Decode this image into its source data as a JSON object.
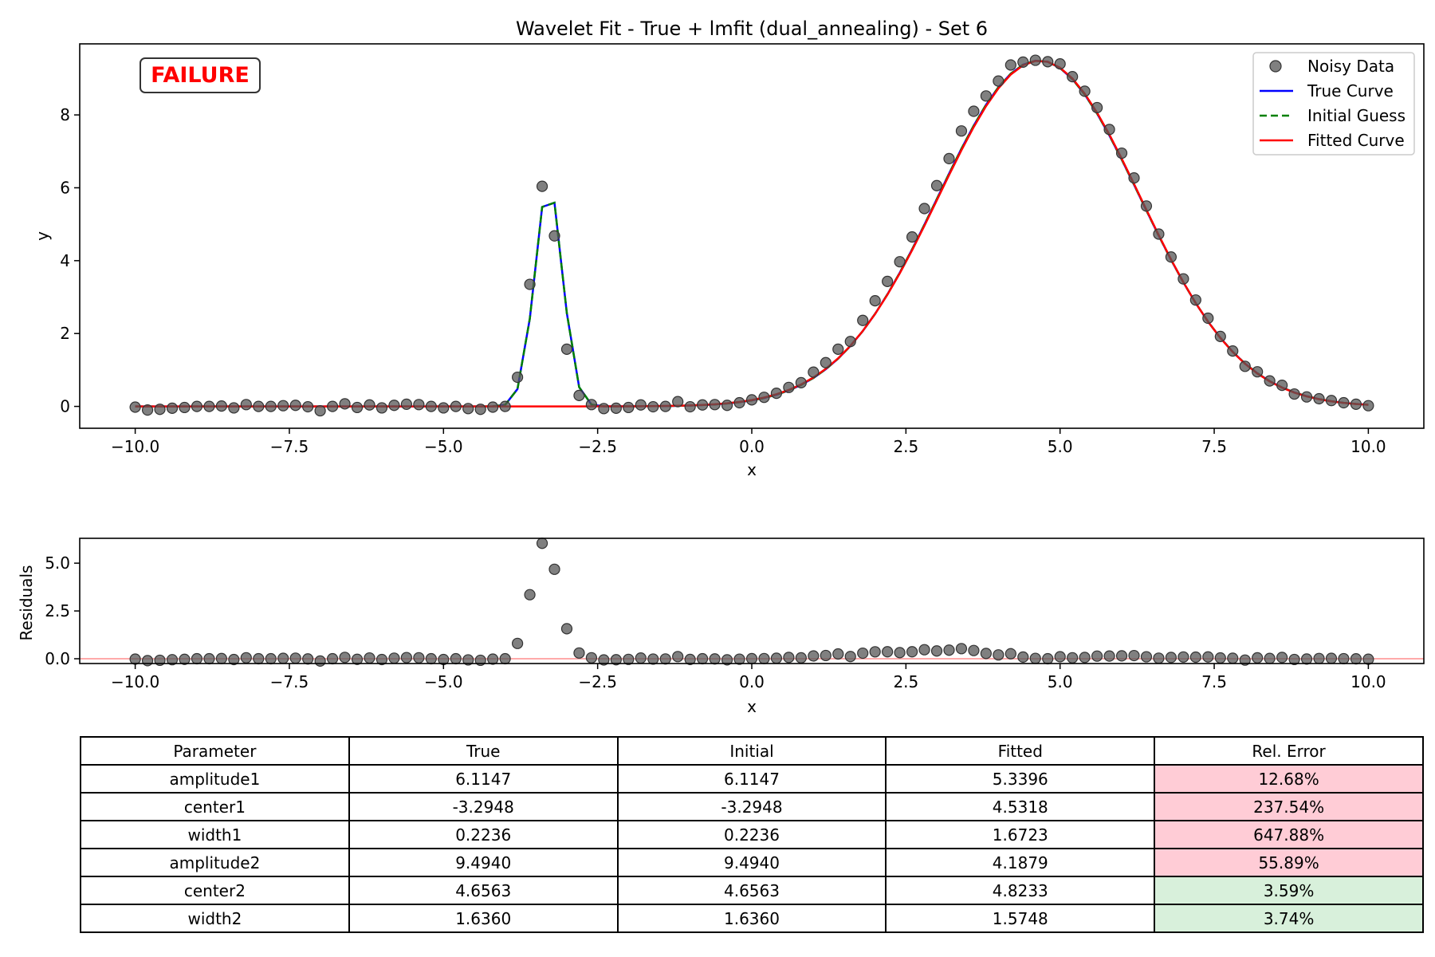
{
  "chart_data": [
    {
      "type": "line",
      "title": "Wavelet Fit - True + lmfit (dual_annealing) - Set 6",
      "xlabel": "x",
      "ylabel": "y",
      "xlim": [
        -10.9,
        10.9
      ],
      "ylim": [
        -0.6,
        9.95
      ],
      "x_ticks": [
        -10.0,
        -7.5,
        -5.0,
        -2.5,
        0.0,
        2.5,
        5.0,
        7.5,
        10.0
      ],
      "x_tick_labels": [
        "−10.0",
        "−7.5",
        "−5.0",
        "−2.5",
        "0.0",
        "2.5",
        "5.0",
        "7.5",
        "10.0"
      ],
      "y_ticks": [
        0,
        2,
        4,
        6,
        8
      ],
      "y_tick_labels": [
        "0",
        "2",
        "4",
        "6",
        "8"
      ],
      "grid": false,
      "legend_position": "top-right",
      "status_badge": "FAILURE",
      "series": [
        {
          "name": "Noisy Data",
          "kind": "scatter",
          "color": "#555555"
        },
        {
          "name": "True Curve",
          "kind": "line",
          "color": "#0000ff",
          "params": {
            "amplitude1": 6.1147,
            "center1": -3.2948,
            "width1": 0.2236,
            "amplitude2": 9.494,
            "center2": 4.6563,
            "width2": 1.636
          }
        },
        {
          "name": "Initial Guess",
          "kind": "dashed-line",
          "color": "#008000",
          "params": {
            "amplitude1": 6.1147,
            "center1": -3.2948,
            "width1": 0.2236,
            "amplitude2": 9.494,
            "center2": 4.6563,
            "width2": 1.636
          }
        },
        {
          "name": "Fitted Curve",
          "kind": "line",
          "color": "#ff0000",
          "params": {
            "amplitude1": 5.3396,
            "center1": 4.5318,
            "width1": 1.6723,
            "amplitude2": 4.1879,
            "center2": 4.8233,
            "width2": 1.5748
          }
        }
      ],
      "data_points": {
        "x_start": -10.0,
        "x_end": 10.0,
        "count": 101,
        "y": [
          -0.02,
          -0.1,
          -0.08,
          -0.05,
          -0.03,
          0.0,
          0.0,
          0.01,
          -0.04,
          0.05,
          0.0,
          0.0,
          0.02,
          0.03,
          -0.01,
          -0.12,
          0.0,
          0.07,
          -0.03,
          0.04,
          -0.04,
          0.03,
          0.06,
          0.05,
          0.0,
          -0.04,
          0.0,
          -0.06,
          -0.08,
          -0.02,
          0.0,
          0.8,
          3.35,
          6.04,
          4.68,
          1.57,
          0.3,
          0.05,
          -0.06,
          -0.05,
          -0.03,
          0.04,
          -0.01,
          0.0,
          0.13,
          -0.01,
          0.04,
          0.05,
          0.03,
          0.1,
          0.18,
          0.25,
          0.36,
          0.52,
          0.65,
          0.94,
          1.2,
          1.57,
          1.78,
          2.36,
          2.9,
          3.43,
          3.97,
          4.65,
          5.43,
          6.06,
          6.8,
          7.56,
          8.1,
          8.52,
          8.93,
          9.37,
          9.45,
          9.5,
          9.46,
          9.4,
          9.05,
          8.65,
          8.2,
          7.6,
          6.95,
          6.27,
          5.5,
          4.73,
          4.1,
          3.5,
          2.92,
          2.42,
          1.92,
          1.52,
          1.1,
          0.95,
          0.7,
          0.58,
          0.34,
          0.26,
          0.21,
          0.16,
          0.1,
          0.06,
          0.02
        ]
      }
    },
    {
      "type": "scatter",
      "title": "",
      "xlabel": "x",
      "ylabel": "Residuals",
      "xlim": [
        -10.9,
        10.9
      ],
      "ylim": [
        -0.25,
        6.3
      ],
      "x_ticks": [
        -10.0,
        -7.5,
        -5.0,
        -2.5,
        0.0,
        2.5,
        5.0,
        7.5,
        10.0
      ],
      "x_tick_labels": [
        "−10.0",
        "−7.5",
        "−5.0",
        "−2.5",
        "0.0",
        "2.5",
        "5.0",
        "7.5",
        "10.0"
      ],
      "y_ticks": [
        0.0,
        2.5,
        5.0
      ],
      "y_tick_labels": [
        "0.0",
        "2.5",
        "5.0"
      ],
      "grid": false,
      "reference_line": {
        "y": 0,
        "color": "#ffaaaa"
      },
      "point_color": "#555555"
    },
    {
      "type": "table",
      "columns": [
        "Parameter",
        "True",
        "Initial",
        "Fitted",
        "Rel. Error"
      ],
      "rows": [
        {
          "cells": [
            "amplitude1",
            "6.1147",
            "6.1147",
            "5.3396",
            "12.68%"
          ],
          "status": "bad"
        },
        {
          "cells": [
            "center1",
            "-3.2948",
            "-3.2948",
            "4.5318",
            "237.54%"
          ],
          "status": "bad"
        },
        {
          "cells": [
            "width1",
            "0.2236",
            "0.2236",
            "1.6723",
            "647.88%"
          ],
          "status": "bad"
        },
        {
          "cells": [
            "amplitude2",
            "9.4940",
            "9.4940",
            "4.1879",
            "55.89%"
          ],
          "status": "bad"
        },
        {
          "cells": [
            "center2",
            "4.6563",
            "4.6563",
            "4.8233",
            "3.59%"
          ],
          "status": "good"
        },
        {
          "cells": [
            "width2",
            "1.6360",
            "1.6360",
            "1.5748",
            "3.74%"
          ],
          "status": "good"
        }
      ],
      "status_colors": {
        "bad": "#ffccd6",
        "good": "#d8f0db"
      }
    }
  ]
}
